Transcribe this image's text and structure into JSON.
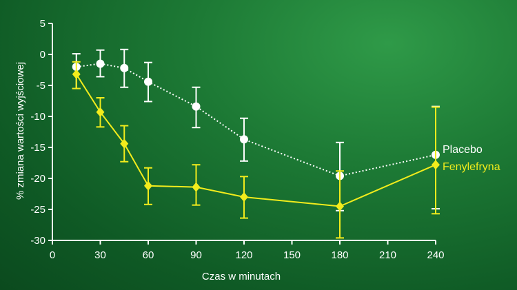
{
  "chart_data": {
    "type": "line",
    "xlabel": "Czas w minutach",
    "ylabel": "% zmiana wartości wyjściowej",
    "xlim": [
      0,
      240
    ],
    "ylim": [
      -30,
      5
    ],
    "x_ticks": [
      0,
      30,
      60,
      90,
      120,
      150,
      180,
      210,
      240
    ],
    "y_ticks": [
      5,
      0,
      -5,
      -10,
      -15,
      -20,
      -25,
      -30
    ],
    "grid": false,
    "legend_placement": "inline-right",
    "series": [
      {
        "name": "Placebo",
        "color": "#ffffff",
        "line_style": "dotted",
        "marker": "circle",
        "x": [
          15,
          30,
          45,
          60,
          90,
          120,
          180,
          240
        ],
        "y": [
          -2,
          -1.5,
          -2.2,
          -4.4,
          -8.4,
          -13.7,
          -19.6,
          -16.2
        ],
        "err_low": [
          -5.5,
          -3.6,
          -5.3,
          -7.6,
          -11.8,
          -17.2,
          -25.2,
          -24.9
        ],
        "err_high": [
          0.1,
          0.7,
          0.8,
          -1.3,
          -5.3,
          -10.3,
          -14.2,
          -8.4
        ]
      },
      {
        "name": "Fenylefryna",
        "color": "#f2ec1c",
        "line_style": "solid",
        "marker": "diamond",
        "x": [
          15,
          30,
          45,
          60,
          90,
          120,
          180,
          240
        ],
        "y": [
          -3.2,
          -9.3,
          -14.4,
          -21.2,
          -21.4,
          -23.0,
          -24.5,
          -17.8
        ],
        "err_low": [
          -5.5,
          -11.7,
          -17.3,
          -24.2,
          -24.3,
          -26.4,
          -29.6,
          -25.7
        ],
        "err_high": [
          -1.2,
          -7.0,
          -11.5,
          -18.3,
          -17.8,
          -19.7,
          -18.8,
          -8.5
        ]
      }
    ]
  }
}
